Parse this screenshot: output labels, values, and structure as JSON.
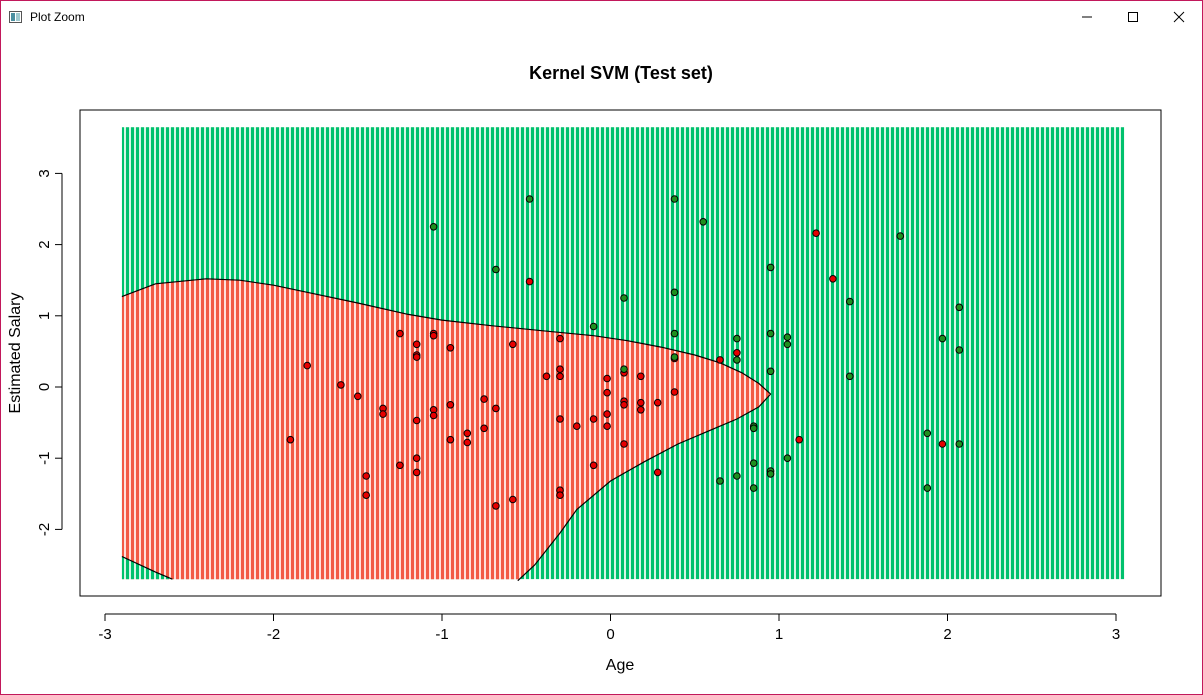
{
  "window": {
    "title": "Plot Zoom",
    "icons": {
      "app": "plot-window-icon",
      "minimize": "minimize-icon",
      "maximize": "maximize-icon",
      "close": "close-icon"
    }
  },
  "chart_data": {
    "type": "scatter",
    "title": "Kernel SVM (Test set)",
    "xlabel": "Age",
    "ylabel": "Estimated Salary",
    "xlim": [
      -3,
      3.1
    ],
    "ylim": [
      -2.8,
      3.9
    ],
    "x_ticks": [
      "-3",
      "-2",
      "-1",
      "0",
      "1",
      "2",
      "3"
    ],
    "y_ticks": [
      "-2",
      "-1",
      "0",
      "1",
      "2",
      "3"
    ],
    "grid_extent": {
      "x": [
        -2.9,
        3.05
      ],
      "y": [
        -2.7,
        3.65
      ]
    },
    "colors": {
      "region_negative": "#fa8072",
      "region_positive": "#3ed38f",
      "point_negative": "#e60000",
      "point_positive": "#1f8f1f",
      "boundary": "#000000"
    },
    "decision_boundary": [
      [
        -2.9,
        1.27
      ],
      [
        -2.7,
        1.45
      ],
      [
        -2.4,
        1.52
      ],
      [
        -2.2,
        1.5
      ],
      [
        -2.0,
        1.43
      ],
      [
        -1.8,
        1.33
      ],
      [
        -1.5,
        1.18
      ],
      [
        -1.2,
        1.02
      ],
      [
        -1.0,
        0.94
      ],
      [
        -0.7,
        0.86
      ],
      [
        -0.4,
        0.79
      ],
      [
        -0.1,
        0.72
      ],
      [
        0.1,
        0.65
      ],
      [
        0.3,
        0.56
      ],
      [
        0.5,
        0.45
      ],
      [
        0.65,
        0.34
      ],
      [
        0.78,
        0.2
      ],
      [
        0.88,
        0.05
      ],
      [
        0.95,
        -0.1
      ],
      [
        0.88,
        -0.28
      ],
      [
        0.75,
        -0.45
      ],
      [
        0.6,
        -0.6
      ],
      [
        0.4,
        -0.8
      ],
      [
        0.2,
        -1.05
      ],
      [
        0.0,
        -1.32
      ],
      [
        -0.2,
        -1.72
      ],
      [
        -0.3,
        -2.05
      ],
      [
        -0.45,
        -2.5
      ],
      [
        -0.55,
        -2.72
      ]
    ],
    "boundary_corner": [
      [
        -2.9,
        -2.38
      ],
      [
        -2.7,
        -2.6
      ],
      [
        -2.6,
        -2.7
      ]
    ],
    "series": [
      {
        "name": "0",
        "color": "#e60000",
        "points": [
          [
            -1.9,
            -0.74
          ],
          [
            -1.8,
            0.3
          ],
          [
            -1.6,
            0.03
          ],
          [
            -1.5,
            -0.13
          ],
          [
            -1.45,
            -1.25
          ],
          [
            -1.45,
            -1.52
          ],
          [
            -1.35,
            -0.3
          ],
          [
            -1.35,
            -0.38
          ],
          [
            -1.25,
            0.75
          ],
          [
            -1.25,
            -1.1
          ],
          [
            -1.15,
            0.6
          ],
          [
            -1.15,
            0.45
          ],
          [
            -1.15,
            0.42
          ],
          [
            -1.15,
            -0.47
          ],
          [
            -1.15,
            -1.0
          ],
          [
            -1.15,
            -1.2
          ],
          [
            -1.05,
            0.75
          ],
          [
            -1.05,
            0.72
          ],
          [
            -1.05,
            -0.32
          ],
          [
            -1.05,
            -0.4
          ],
          [
            -0.95,
            0.55
          ],
          [
            -0.95,
            -0.25
          ],
          [
            -0.95,
            -0.74
          ],
          [
            -0.85,
            -0.65
          ],
          [
            -0.85,
            -0.78
          ],
          [
            -0.75,
            -0.17
          ],
          [
            -0.75,
            -0.58
          ],
          [
            -0.68,
            -0.3
          ],
          [
            -0.68,
            -1.67
          ],
          [
            -0.58,
            0.6
          ],
          [
            -0.58,
            -1.58
          ],
          [
            -0.48,
            1.48
          ],
          [
            -0.38,
            0.15
          ],
          [
            -0.3,
            0.68
          ],
          [
            -0.3,
            0.25
          ],
          [
            -0.3,
            0.15
          ],
          [
            -0.3,
            -0.45
          ],
          [
            -0.3,
            -1.45
          ],
          [
            -0.3,
            -1.52
          ],
          [
            -0.2,
            -0.55
          ],
          [
            -0.1,
            -0.45
          ],
          [
            -0.1,
            -1.1
          ],
          [
            -0.02,
            0.12
          ],
          [
            -0.02,
            -0.08
          ],
          [
            -0.02,
            -0.38
          ],
          [
            -0.02,
            -0.55
          ],
          [
            0.08,
            0.2
          ],
          [
            0.08,
            -0.2
          ],
          [
            0.08,
            -0.25
          ],
          [
            0.08,
            -0.8
          ],
          [
            0.18,
            0.15
          ],
          [
            0.18,
            -0.22
          ],
          [
            0.18,
            -0.32
          ],
          [
            0.28,
            -0.22
          ],
          [
            0.28,
            -1.2
          ],
          [
            0.38,
            0.4
          ],
          [
            0.38,
            -0.07
          ],
          [
            0.65,
            0.38
          ],
          [
            0.75,
            0.48
          ],
          [
            1.12,
            -0.74
          ],
          [
            1.22,
            2.16
          ],
          [
            1.32,
            1.52
          ],
          [
            1.97,
            -0.8
          ]
        ]
      },
      {
        "name": "1",
        "color": "#1f8f1f",
        "points": [
          [
            -1.05,
            2.25
          ],
          [
            -0.68,
            1.65
          ],
          [
            -0.48,
            2.64
          ],
          [
            -0.1,
            0.85
          ],
          [
            0.08,
            1.25
          ],
          [
            0.08,
            0.25
          ],
          [
            0.38,
            2.64
          ],
          [
            0.38,
            1.33
          ],
          [
            0.38,
            0.75
          ],
          [
            0.38,
            0.42
          ],
          [
            0.55,
            2.32
          ],
          [
            0.65,
            -1.32
          ],
          [
            0.75,
            0.68
          ],
          [
            0.75,
            0.38
          ],
          [
            0.75,
            -1.25
          ],
          [
            0.85,
            -0.55
          ],
          [
            0.85,
            -0.58
          ],
          [
            0.85,
            -1.07
          ],
          [
            0.85,
            -1.42
          ],
          [
            0.95,
            1.68
          ],
          [
            0.95,
            0.75
          ],
          [
            0.95,
            0.22
          ],
          [
            0.95,
            -1.18
          ],
          [
            0.95,
            -1.22
          ],
          [
            1.05,
            0.7
          ],
          [
            1.05,
            0.6
          ],
          [
            1.05,
            -1.0
          ],
          [
            1.42,
            1.2
          ],
          [
            1.42,
            0.15
          ],
          [
            1.72,
            2.12
          ],
          [
            1.88,
            -0.65
          ],
          [
            1.88,
            -1.42
          ],
          [
            1.97,
            0.68
          ],
          [
            2.07,
            1.12
          ],
          [
            2.07,
            0.52
          ],
          [
            2.07,
            -0.8
          ]
        ]
      }
    ],
    "grid": false,
    "legend": "none"
  }
}
